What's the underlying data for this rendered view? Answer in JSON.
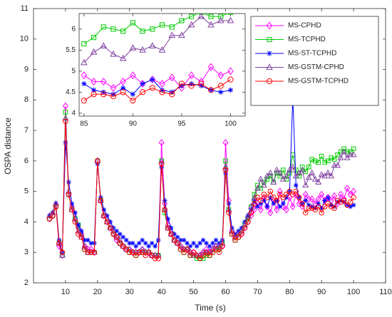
{
  "chart_data": {
    "type": "line",
    "xlabel": "Time (s)",
    "ylabel": "OSPA distance",
    "xlim": [
      0,
      110
    ],
    "ylim": [
      2,
      11
    ],
    "xticks": [
      10,
      20,
      30,
      40,
      50,
      60,
      70,
      80,
      90,
      100,
      110
    ],
    "yticks": [
      2,
      3,
      4,
      5,
      6,
      7,
      8,
      9,
      10,
      11
    ],
    "legend": "upper right",
    "x": [
      5,
      6,
      7,
      8,
      9,
      10,
      11,
      12,
      13,
      14,
      15,
      16,
      17,
      18,
      19,
      20,
      21,
      22,
      23,
      24,
      25,
      26,
      27,
      28,
      29,
      30,
      31,
      32,
      33,
      34,
      35,
      36,
      37,
      38,
      39,
      40,
      41,
      42,
      43,
      44,
      45,
      46,
      47,
      48,
      49,
      50,
      51,
      52,
      53,
      54,
      55,
      56,
      57,
      58,
      59,
      60,
      61,
      62,
      63,
      64,
      65,
      66,
      67,
      68,
      69,
      70,
      71,
      72,
      73,
      74,
      75,
      76,
      77,
      78,
      79,
      80,
      81,
      82,
      83,
      84,
      85,
      86,
      87,
      88,
      89,
      90,
      91,
      92,
      93,
      94,
      95,
      96,
      97,
      98,
      99,
      100
    ],
    "series": [
      {
        "name": "MS-CPHD",
        "color": "#ff00ff",
        "marker": "diamond",
        "values": [
          4.1,
          4.2,
          4.5,
          3.2,
          2.9,
          7.8,
          4.9,
          4.5,
          4.1,
          3.8,
          3.6,
          3.2,
          3.1,
          3.1,
          3.0,
          6.0,
          4.7,
          4.2,
          4.0,
          3.8,
          3.6,
          3.4,
          3.3,
          3.2,
          3.1,
          3.1,
          3.0,
          3.0,
          3.0,
          3.1,
          3.0,
          3.0,
          2.9,
          2.9,
          2.9,
          6.6,
          4.6,
          3.9,
          3.6,
          3.4,
          3.3,
          3.2,
          3.1,
          3.1,
          3.0,
          3.0,
          2.9,
          2.9,
          3.0,
          3.1,
          3.0,
          3.1,
          3.2,
          3.1,
          3.2,
          6.6,
          4.7,
          3.7,
          3.5,
          3.6,
          3.6,
          3.8,
          4.0,
          4.2,
          4.4,
          4.6,
          4.4,
          4.8,
          4.5,
          4.3,
          4.7,
          4.4,
          5.0,
          4.5,
          4.4,
          4.8,
          4.5,
          4.9,
          4.6,
          4.5,
          4.9,
          4.75,
          4.75,
          4.6,
          4.75,
          4.9,
          4.7,
          4.8,
          4.7,
          4.85,
          4.6,
          4.9,
          4.75,
          5.1,
          4.9,
          5.0
        ]
      },
      {
        "name": "MS-TCPHD",
        "color": "#00cc00",
        "marker": "square",
        "values": [
          4.1,
          4.2,
          4.5,
          3.3,
          2.9,
          7.6,
          4.9,
          4.4,
          4.1,
          3.9,
          3.5,
          3.1,
          3.0,
          3.0,
          3.0,
          6.0,
          4.7,
          4.2,
          4.0,
          3.8,
          3.6,
          3.5,
          3.3,
          3.2,
          3.1,
          3.0,
          3.0,
          2.9,
          3.0,
          3.0,
          3.0,
          3.0,
          2.9,
          2.9,
          2.9,
          6.0,
          4.3,
          3.8,
          3.6,
          3.4,
          3.3,
          3.1,
          3.0,
          3.1,
          2.9,
          2.9,
          2.8,
          2.8,
          2.8,
          2.9,
          2.9,
          3.0,
          3.1,
          3.1,
          3.3,
          6.0,
          4.4,
          3.6,
          3.4,
          3.5,
          3.7,
          3.9,
          4.1,
          4.5,
          4.9,
          5.2,
          5.1,
          5.3,
          5.4,
          5.5,
          5.3,
          5.6,
          5.5,
          5.7,
          5.4,
          5.6,
          6.2,
          5.7,
          5.5,
          5.8,
          5.65,
          5.8,
          6.05,
          6.0,
          5.95,
          6.15,
          5.95,
          6.0,
          6.1,
          6.05,
          6.2,
          6.3,
          6.4,
          6.3,
          6.3,
          6.4
        ]
      },
      {
        "name": "MS-ST-TCPHD",
        "color": "#0000ff",
        "marker": "star",
        "values": [
          4.2,
          4.3,
          4.6,
          3.4,
          3.0,
          6.6,
          5.3,
          4.6,
          4.3,
          3.9,
          3.7,
          3.4,
          3.4,
          3.3,
          3.3,
          5.9,
          4.8,
          4.4,
          4.2,
          4.0,
          3.8,
          3.7,
          3.6,
          3.5,
          3.4,
          3.3,
          3.3,
          3.2,
          3.3,
          3.4,
          3.3,
          3.2,
          3.3,
          3.2,
          3.4,
          5.8,
          4.7,
          4.1,
          3.8,
          3.6,
          3.5,
          3.4,
          3.4,
          3.3,
          3.2,
          3.3,
          3.2,
          3.3,
          3.4,
          3.3,
          3.2,
          3.3,
          3.4,
          3.3,
          3.4,
          5.6,
          4.6,
          3.8,
          3.6,
          3.7,
          3.8,
          4.0,
          4.2,
          4.4,
          4.7,
          4.5,
          4.6,
          4.7,
          4.5,
          4.8,
          4.6,
          4.7,
          4.5,
          4.6,
          4.8,
          5.0,
          8.1,
          5.2,
          4.8,
          4.6,
          4.7,
          4.55,
          4.5,
          4.45,
          4.6,
          4.45,
          4.7,
          4.8,
          4.55,
          4.5,
          4.65,
          4.7,
          4.65,
          4.55,
          4.5,
          4.55
        ]
      },
      {
        "name": "MS-GSTM-CPHD",
        "color": "#8040a0",
        "marker": "triangle",
        "values": [
          4.2,
          4.3,
          4.6,
          3.3,
          2.9,
          7.4,
          5.0,
          4.4,
          4.1,
          3.7,
          3.5,
          3.2,
          3.0,
          3.0,
          3.0,
          6.0,
          4.7,
          4.2,
          4.0,
          3.8,
          3.7,
          3.5,
          3.4,
          3.2,
          3.1,
          3.1,
          3.0,
          3.0,
          3.0,
          3.1,
          3.0,
          3.0,
          2.9,
          2.9,
          2.9,
          6.0,
          4.4,
          3.8,
          3.6,
          3.4,
          3.3,
          3.2,
          3.1,
          3.1,
          3.0,
          2.9,
          2.9,
          2.9,
          3.0,
          3.0,
          3.0,
          3.1,
          3.2,
          3.2,
          3.3,
          5.8,
          4.4,
          3.7,
          3.5,
          3.6,
          3.7,
          3.9,
          4.2,
          4.5,
          4.8,
          5.1,
          5.4,
          5.2,
          5.5,
          5.6,
          5.3,
          5.7,
          5.6,
          5.4,
          5.5,
          5.7,
          5.8,
          5.5,
          5.6,
          5.7,
          5.2,
          5.45,
          5.6,
          5.4,
          5.3,
          5.55,
          5.5,
          5.6,
          5.5,
          5.85,
          5.85,
          6.1,
          6.3,
          6.1,
          6.2,
          6.2
        ]
      },
      {
        "name": "MS-GSTM-TCPHD",
        "color": "#ff0000",
        "marker": "circle",
        "values": [
          4.1,
          4.2,
          4.5,
          3.3,
          3.0,
          7.3,
          4.9,
          4.4,
          4.0,
          3.6,
          3.5,
          3.1,
          3.0,
          3.0,
          3.0,
          6.0,
          4.7,
          4.2,
          4.0,
          3.8,
          3.6,
          3.5,
          3.3,
          3.2,
          3.1,
          3.0,
          3.0,
          2.9,
          3.0,
          3.0,
          2.9,
          3.0,
          2.9,
          2.8,
          2.8,
          5.9,
          4.4,
          3.8,
          3.6,
          3.4,
          3.3,
          3.1,
          3.0,
          3.1,
          2.9,
          3.0,
          2.9,
          2.8,
          2.9,
          3.0,
          2.9,
          3.0,
          3.1,
          3.0,
          3.2,
          5.7,
          4.3,
          3.6,
          3.4,
          3.5,
          3.6,
          3.8,
          4.0,
          4.3,
          4.6,
          4.8,
          4.7,
          4.9,
          4.8,
          5.0,
          4.8,
          4.7,
          4.9,
          4.8,
          4.9,
          5.0,
          4.9,
          5.0,
          4.8,
          4.6,
          4.3,
          4.45,
          4.45,
          4.4,
          4.5,
          4.3,
          4.5,
          4.6,
          4.5,
          4.45,
          4.7,
          4.65,
          4.7,
          4.55,
          4.65,
          4.8
        ]
      }
    ],
    "inset": {
      "xlim": [
        84.5,
        101.5
      ],
      "ylim": [
        3.93,
        6.37
      ],
      "xticks": [
        85,
        90,
        95,
        100
      ],
      "yticks": [
        4,
        4.5,
        5,
        5.5,
        6
      ]
    }
  }
}
